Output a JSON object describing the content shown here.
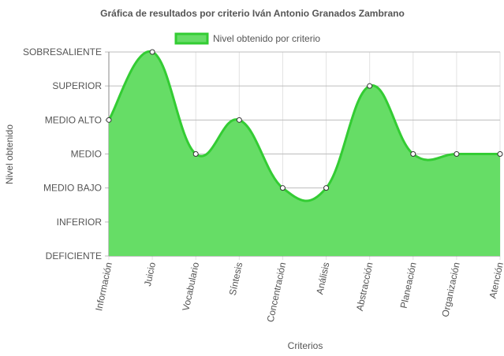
{
  "chart_data": {
    "type": "area",
    "title": "Gráfica de resultados por criterio Iván Antonio Granados Zambrano",
    "xlabel": "Criterios",
    "ylabel": "Nivel obtenido",
    "levels": [
      "DEFICIENTE",
      "INFERIOR",
      "MEDIO BAJO",
      "MEDIO",
      "MEDIO ALTO",
      "SUPERIOR",
      "SOBRESALIENTE"
    ],
    "categories": [
      "Información",
      "Juicio",
      "Vocabulario",
      "Síntesis",
      "Concentración",
      "Análisis",
      "Abstracción",
      "Planeación",
      "Organización",
      "Atención"
    ],
    "series": [
      {
        "name": "Nivel obtenido por criterio",
        "values": [
          4,
          6,
          3,
          4,
          2,
          2,
          5,
          3,
          3,
          3
        ],
        "value_labels": [
          "MEDIO ALTO",
          "SOBRESALIENTE",
          "MEDIO",
          "MEDIO ALTO",
          "MEDIO BAJO",
          "MEDIO BAJO",
          "SUPERIOR",
          "MEDIO",
          "MEDIO",
          "MEDIO"
        ],
        "color": "#33cc33",
        "fill": "#66dd66"
      }
    ],
    "ylim": [
      0,
      6
    ],
    "grid": true,
    "legend": "top"
  }
}
